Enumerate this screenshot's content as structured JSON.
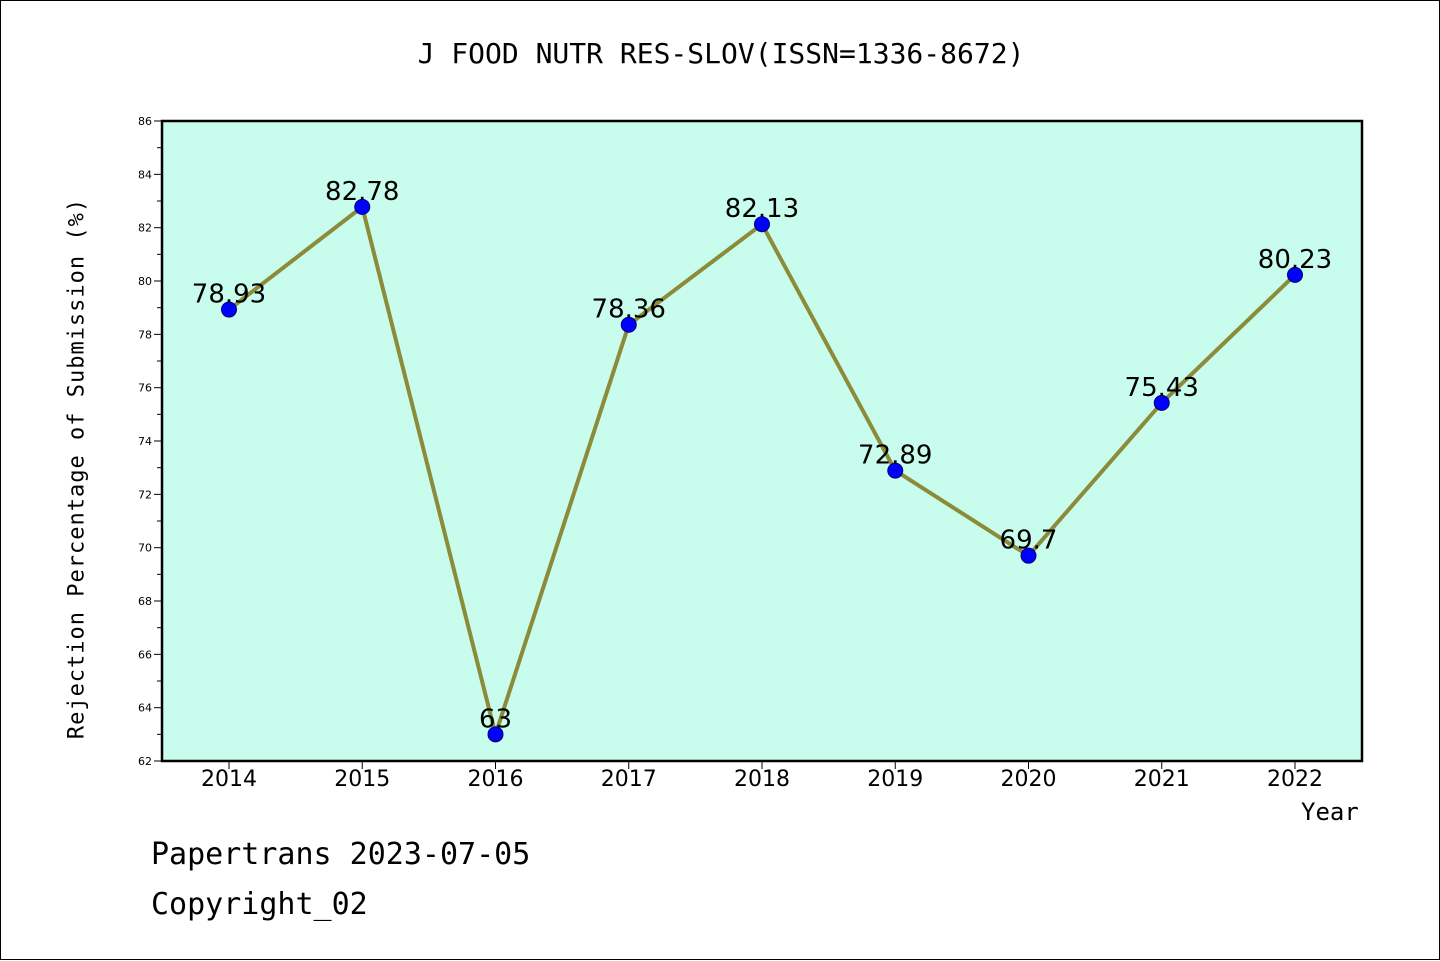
{
  "chart_data": {
    "type": "line",
    "title": "J FOOD NUTR RES-SLOV(ISSN=1336-8672)",
    "xlabel": "Year",
    "ylabel": "Rejection Percentage of Submission (%)",
    "categories": [
      "2014",
      "2015",
      "2016",
      "2017",
      "2018",
      "2019",
      "2020",
      "2021",
      "2022"
    ],
    "values": [
      78.93,
      82.78,
      63,
      78.36,
      82.13,
      72.89,
      69.7,
      75.43,
      80.23
    ],
    "data_labels": [
      "78.93",
      "82.78",
      "63",
      "78.36",
      "82.13",
      "72.89",
      "69.7",
      "75.43",
      "80.23"
    ],
    "ylim": [
      62,
      86
    ],
    "yticks": [
      62,
      64,
      66,
      68,
      70,
      72,
      74,
      76,
      78,
      80,
      82,
      84,
      86
    ],
    "grid": false,
    "colors": {
      "plot_bg": "#c8fcec",
      "line": "#8b8b3a",
      "marker": "#0000ff",
      "marker_edge": "#00007a"
    }
  },
  "footer": {
    "line1": "Papertrans 2023-07-05",
    "line2": "Copyright_02"
  }
}
